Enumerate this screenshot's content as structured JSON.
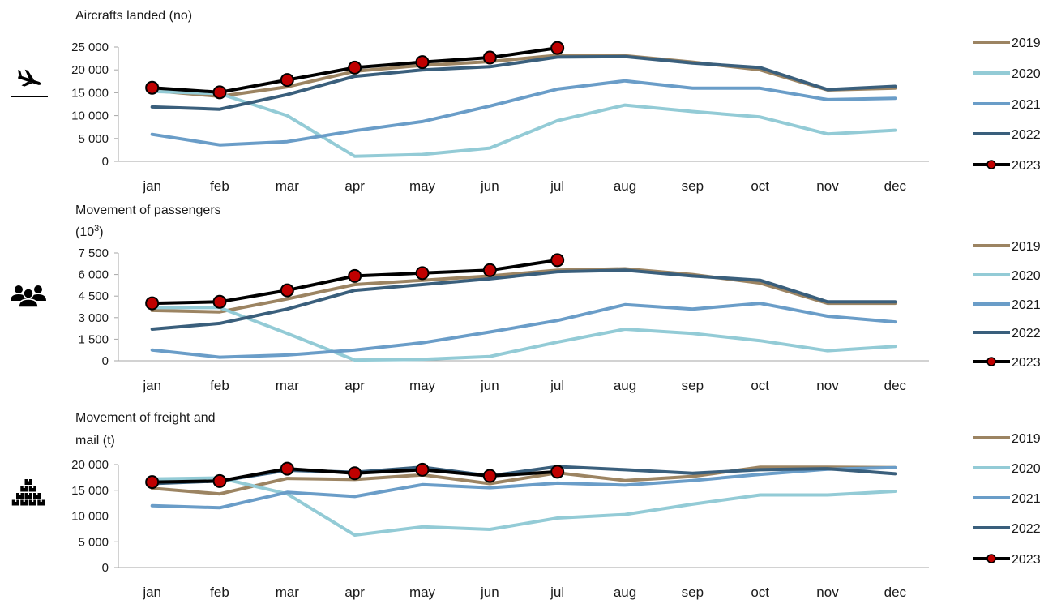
{
  "colors": {
    "2019": "#9c8462",
    "2020": "#93cbd6",
    "2021": "#6a9dc8",
    "2022": "#3a5f7c",
    "2023": "#000000",
    "2023_marker": "#c00000",
    "axis": "#a6a6a6"
  },
  "chart_data": [
    {
      "type": "line",
      "icon": "airplane-landing-icon",
      "title": "Aircrafts landed (no)",
      "title_sup": "",
      "title_lines": [
        "Aircrafts landed (no)"
      ],
      "categories": [
        "jan",
        "feb",
        "mar",
        "apr",
        "may",
        "jun",
        "jul",
        "aug",
        "sep",
        "oct",
        "nov",
        "dec"
      ],
      "ylim": [
        0,
        25000
      ],
      "yticks": [
        0,
        5000,
        10000,
        15000,
        20000,
        25000
      ],
      "ytick_labels": [
        "0",
        "5 000",
        "10 000",
        "15 000",
        "20 000",
        "25 000"
      ],
      "grid": false,
      "legend_position": "right",
      "series": [
        {
          "name": "2019",
          "values": [
            15500,
            14200,
            16300,
            19700,
            21000,
            21800,
            23200,
            23100,
            21700,
            20000,
            15600,
            16000
          ]
        },
        {
          "name": "2020",
          "values": [
            15300,
            14800,
            10000,
            1100,
            1500,
            2900,
            8900,
            12300,
            10900,
            9700,
            6000,
            6800
          ]
        },
        {
          "name": "2021",
          "values": [
            5900,
            3600,
            4300,
            6700,
            8700,
            12100,
            15800,
            17600,
            16000,
            16000,
            13500,
            13800
          ]
        },
        {
          "name": "2022",
          "values": [
            11900,
            11400,
            14600,
            18600,
            20000,
            20700,
            22800,
            22900,
            21500,
            20500,
            15700,
            16400
          ]
        },
        {
          "name": "2023",
          "values": [
            16100,
            15100,
            17800,
            20500,
            21700,
            22700,
            24800,
            null,
            null,
            null,
            null,
            null
          ]
        }
      ]
    },
    {
      "type": "line",
      "icon": "people-group-icon",
      "title": "Movement of passengers",
      "title_lines": [
        "Movement of passengers",
        "(10"
      ],
      "title_sup": "3",
      "title_tail": ")",
      "categories": [
        "jan",
        "feb",
        "mar",
        "apr",
        "may",
        "jun",
        "jul",
        "aug",
        "sep",
        "oct",
        "nov",
        "dec"
      ],
      "ylim": [
        0,
        7500
      ],
      "yticks": [
        0,
        1500,
        3000,
        4500,
        6000,
        7500
      ],
      "ytick_labels": [
        "0",
        "1 500",
        "3 000",
        "4 500",
        "6 000",
        "7 500"
      ],
      "grid": false,
      "legend_position": "right",
      "series": [
        {
          "name": "2019",
          "values": [
            3500,
            3400,
            4300,
            5300,
            5600,
            5900,
            6300,
            6400,
            6000,
            5400,
            4000,
            4000
          ]
        },
        {
          "name": "2020",
          "values": [
            3700,
            3700,
            1900,
            50,
            100,
            300,
            1300,
            2200,
            1900,
            1400,
            700,
            1000
          ]
        },
        {
          "name": "2021",
          "values": [
            750,
            250,
            400,
            750,
            1250,
            2000,
            2800,
            3900,
            3600,
            4000,
            3100,
            2700
          ]
        },
        {
          "name": "2022",
          "values": [
            2200,
            2600,
            3600,
            4900,
            5300,
            5700,
            6200,
            6300,
            5900,
            5600,
            4100,
            4100
          ]
        },
        {
          "name": "2023",
          "values": [
            4000,
            4100,
            4900,
            5900,
            6100,
            6300,
            7000,
            null,
            null,
            null,
            null,
            null
          ]
        }
      ]
    },
    {
      "type": "line",
      "icon": "freight-boxes-icon",
      "title": "Movement of freight and mail (t)",
      "title_sup": "",
      "title_lines": [
        "Movement of freight and",
        "mail (t)"
      ],
      "categories": [
        "jan",
        "feb",
        "mar",
        "apr",
        "may",
        "jun",
        "jul",
        "aug",
        "sep",
        "oct",
        "nov",
        "dec"
      ],
      "ylim": [
        0,
        20000
      ],
      "yticks": [
        0,
        5000,
        10000,
        15000,
        20000
      ],
      "ytick_labels": [
        "0",
        "5 000",
        "10 000",
        "15 000",
        "20 000"
      ],
      "grid": false,
      "legend_position": "right",
      "series": [
        {
          "name": "2019",
          "values": [
            15400,
            14300,
            17300,
            17100,
            18000,
            16300,
            18400,
            16900,
            17700,
            19500,
            19500,
            19400
          ]
        },
        {
          "name": "2020",
          "values": [
            17200,
            17400,
            14300,
            6300,
            7900,
            7400,
            9600,
            10300,
            12300,
            14100,
            14100,
            14800
          ]
        },
        {
          "name": "2021",
          "values": [
            12000,
            11600,
            14600,
            13800,
            16100,
            15500,
            16400,
            16000,
            16900,
            18100,
            19100,
            19400
          ]
        },
        {
          "name": "2022",
          "values": [
            16300,
            16800,
            18900,
            18500,
            19500,
            17800,
            19600,
            19000,
            18300,
            19000,
            19200,
            18200
          ]
        },
        {
          "name": "2023",
          "values": [
            16600,
            16800,
            19200,
            18300,
            19000,
            17800,
            18600,
            null,
            null,
            null,
            null,
            null
          ]
        }
      ]
    }
  ]
}
